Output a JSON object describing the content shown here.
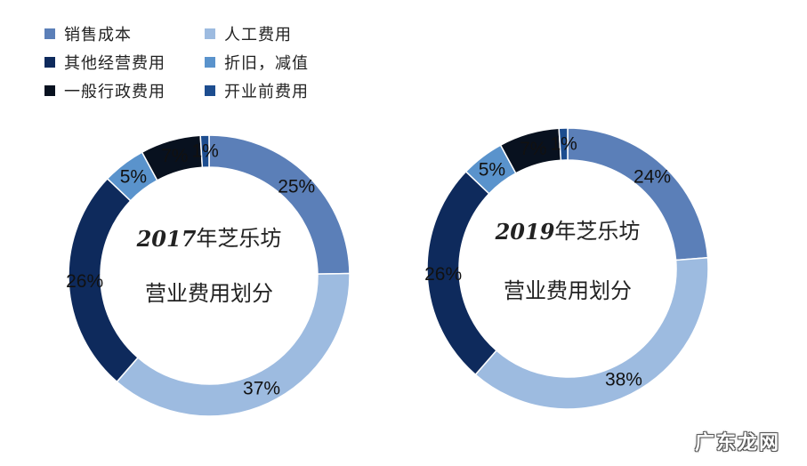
{
  "legend": {
    "items": [
      {
        "label": "销售成本",
        "color": "#5b7fb8"
      },
      {
        "label": "人工费用",
        "color": "#9dbbe0"
      },
      {
        "label": "其他经营费用",
        "color": "#0e2a5c"
      },
      {
        "label": "折旧，减值",
        "color": "#5a93cc"
      },
      {
        "label": "一般行政费用",
        "color": "#08111f"
      },
      {
        "label": "开业前费用",
        "color": "#1d4d8f"
      }
    ]
  },
  "chart_data": [
    {
      "type": "pie",
      "variant": "donut",
      "title_year": "2017",
      "title_suffix": "年芝乐坊",
      "subtitle": "营业费用划分",
      "categories": [
        "销售成本",
        "人工费用",
        "其他经营费用",
        "折旧，减值",
        "一般行政费用",
        "开业前费用"
      ],
      "values": [
        25,
        37,
        26,
        5,
        7,
        1
      ],
      "labels": [
        "25%",
        "37%",
        "26%",
        "5%",
        "7%",
        "1%"
      ]
    },
    {
      "type": "pie",
      "variant": "donut",
      "title_year": "2019",
      "title_suffix": "年芝乐坊",
      "subtitle": "营业费用划分",
      "categories": [
        "销售成本",
        "人工费用",
        "其他经营费用",
        "折旧，减值",
        "一般行政费用",
        "开业前费用"
      ],
      "values": [
        24,
        38,
        26,
        5,
        7,
        1
      ],
      "labels": [
        "24%",
        "38%",
        "26%",
        "5%",
        "7%",
        "1%"
      ]
    }
  ],
  "watermark": "广东龙网"
}
